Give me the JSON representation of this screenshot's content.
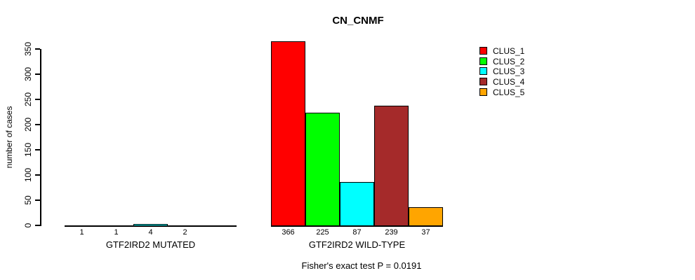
{
  "title": "CN_CNMF",
  "y_axis": {
    "label": "number of cases",
    "ticks": [
      0,
      50,
      100,
      150,
      200,
      250,
      300,
      350
    ]
  },
  "legend": {
    "items": [
      {
        "label": "CLUS_1",
        "color": "#FF0000"
      },
      {
        "label": "CLUS_2",
        "color": "#00FF00"
      },
      {
        "label": "CLUS_3",
        "color": "#00FFFF"
      },
      {
        "label": "CLUS_4",
        "color": "#A52A2A"
      },
      {
        "label": "CLUS_5",
        "color": "#FFA500"
      }
    ]
  },
  "footnote": "Fisher's exact test P = 0.0191",
  "chart_data": {
    "type": "bar",
    "title": "CN_CNMF",
    "ylabel": "number of cases",
    "ylim": [
      0,
      350
    ],
    "grid": false,
    "legend_position": "top-right",
    "categories": [
      "CLUS_1",
      "CLUS_2",
      "CLUS_3",
      "CLUS_4",
      "CLUS_5"
    ],
    "colors": [
      "#FF0000",
      "#00FF00",
      "#00FFFF",
      "#A52A2A",
      "#FFA500"
    ],
    "groups": [
      {
        "label": "GTF2IRD2 MUTATED",
        "values": [
          1,
          1,
          4,
          2,
          0
        ],
        "bar_labels": [
          "1",
          "1",
          "4",
          "2",
          ""
        ]
      },
      {
        "label": "GTF2IRD2 WILD-TYPE",
        "values": [
          366,
          225,
          87,
          239,
          37
        ],
        "bar_labels": [
          "366",
          "225",
          "87",
          "239",
          "37"
        ]
      }
    ],
    "annotation": "Fisher's exact test P = 0.0191"
  }
}
